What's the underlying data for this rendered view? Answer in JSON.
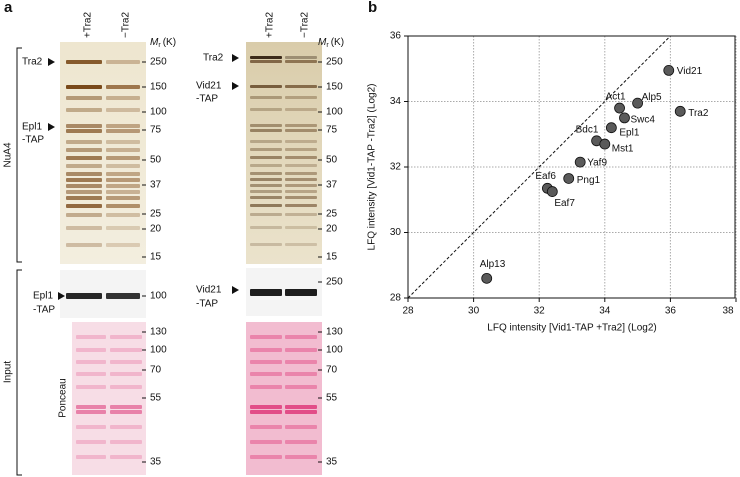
{
  "panel_a": {
    "letter": "a",
    "gel_left": {
      "lanes": [
        "+Tra2",
        "−Tra2"
      ],
      "mr": "M",
      "mr_sub": "r",
      "mr_unit": "(K)",
      "markers": [
        250,
        150,
        100,
        75,
        50,
        37,
        25,
        20,
        15
      ],
      "labels": [
        "Tra2",
        "Epl1",
        "-TAP"
      ]
    },
    "gel_right": {
      "lanes": [
        "+Tra2",
        "−Tra2"
      ],
      "mr": "M",
      "mr_sub": "r",
      "mr_unit": "(K)",
      "markers": [
        250,
        150,
        100,
        75,
        50,
        37,
        25,
        20,
        15
      ],
      "labels": [
        "Tra2",
        "Vid21",
        "-TAP"
      ]
    },
    "blot_left": {
      "markers": [
        100
      ],
      "labels": [
        "Epl1",
        "-TAP"
      ]
    },
    "blot_right": {
      "markers": [
        250
      ],
      "labels": [
        "Vid21",
        "-TAP"
      ]
    },
    "ponceau_left": {
      "markers": [
        130,
        100,
        70,
        55,
        35
      ],
      "labels": [
        "Ponceau"
      ]
    },
    "ponceau_right": {
      "markers": [
        130,
        100,
        70,
        55,
        35
      ]
    },
    "sections": [
      "NuA4",
      "Input"
    ]
  },
  "chart_data": {
    "type": "scatter",
    "letter": "b",
    "xlabel": "LFQ intensity [Vid1-TAP +Tra2] (Log2)",
    "ylabel": "LFQ intensity [Vid1-TAP -Tra2] (Log2)",
    "labels": [
      "Vid21",
      "Tra2",
      "Alp5",
      "Swc4",
      "Act1",
      "Epl1",
      "Bdc1",
      "Mst1",
      "Yaf9",
      "Png1",
      "Eaf6",
      "Eaf7",
      "Alp13"
    ],
    "x": [
      35.95,
      36.3,
      35.0,
      34.6,
      34.45,
      34.2,
      33.75,
      34.0,
      33.25,
      32.9,
      32.25,
      32.4,
      30.4
    ],
    "y": [
      34.95,
      33.7,
      33.95,
      33.5,
      33.8,
      33.2,
      32.8,
      32.7,
      32.15,
      31.65,
      31.35,
      31.25,
      28.6
    ],
    "color": "#5a5a5a",
    "xlim": [
      28,
      38
    ],
    "ylim": [
      28,
      36
    ],
    "xticks": [
      28,
      30,
      32,
      34,
      36,
      38
    ],
    "yticks": [
      28,
      30,
      32,
      34,
      36
    ],
    "grid": true
  }
}
